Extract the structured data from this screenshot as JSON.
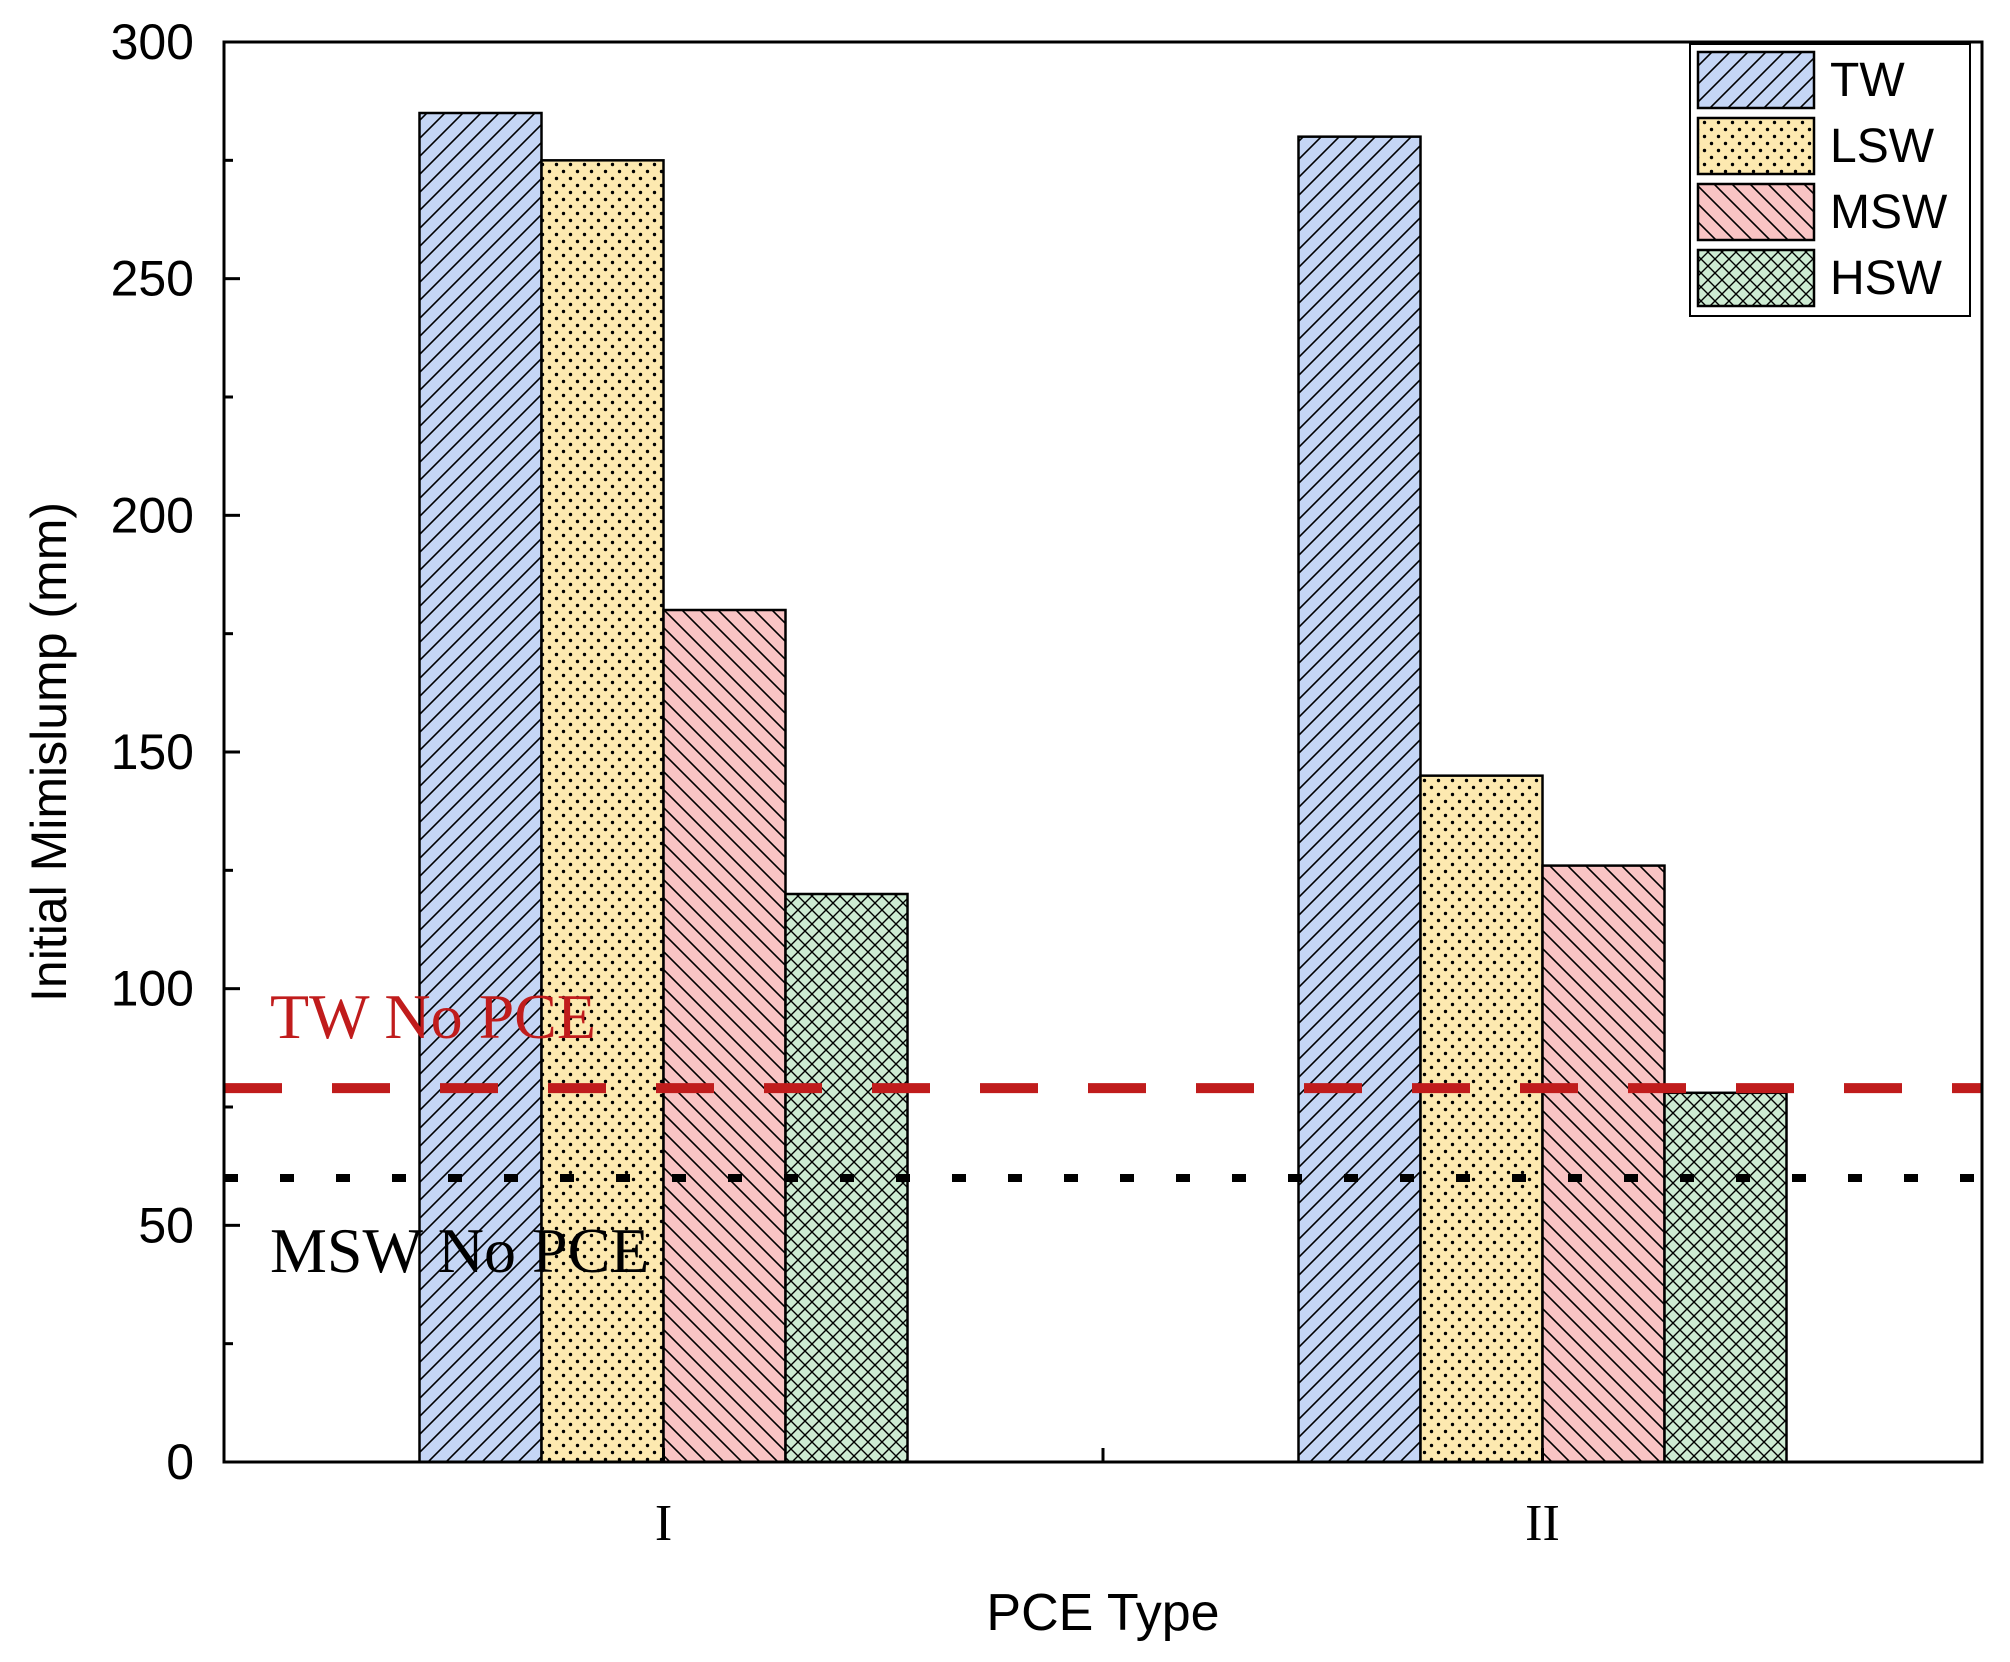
{
  "chart_data": {
    "type": "bar",
    "title": "",
    "xlabel": "PCE Type",
    "ylabel": "Initial Mimislump (mm)",
    "categories": [
      "I",
      "II"
    ],
    "ylim": [
      0,
      300
    ],
    "yticks": [
      0,
      50,
      100,
      150,
      200,
      250,
      300
    ],
    "series": [
      {
        "name": "TW",
        "values": [
          285,
          280
        ],
        "color": "#c5d6f5",
        "pattern": "diagonal-up"
      },
      {
        "name": "LSW",
        "values": [
          275,
          145
        ],
        "color": "#fde9b0",
        "pattern": "dots"
      },
      {
        "name": "MSW",
        "values": [
          180,
          126
        ],
        "color": "#f9c4c4",
        "pattern": "diagonal-down"
      },
      {
        "name": "HSW",
        "values": [
          120,
          78
        ],
        "color": "#cdebd2",
        "pattern": "crosshatch"
      }
    ],
    "reference_lines": [
      {
        "label": "TW No PCE",
        "value": 79,
        "color": "#c01c1c",
        "style": "dashed"
      },
      {
        "label": "MSW No PCE",
        "value": 60,
        "color": "#000000",
        "style": "dotted"
      }
    ],
    "legend_position": "top-right",
    "grid": false
  }
}
